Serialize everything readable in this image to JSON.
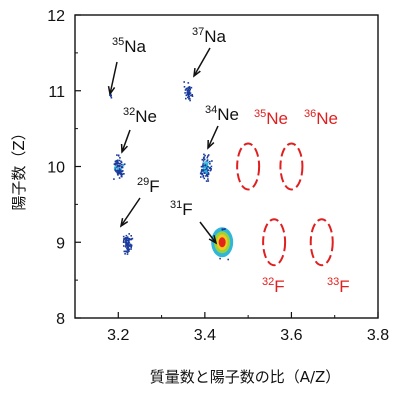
{
  "chart_data": {
    "type": "scatter",
    "title": "",
    "xlabel": "質量数と陽子数の比（A/Z）",
    "ylabel": "陽子数（Z）",
    "xlim": [
      3.1,
      3.8
    ],
    "ylim": [
      8,
      12
    ],
    "xticks": [
      "3.2",
      "3.4",
      "3.6",
      "3.8"
    ],
    "yticks": [
      "8",
      "9",
      "10",
      "11",
      "12"
    ],
    "grid": false,
    "observed": [
      {
        "isotope": "35Na",
        "sup": "35",
        "el": "Na",
        "x": 3.18,
        "y": 10.95
      },
      {
        "isotope": "37Na",
        "sup": "37",
        "el": "Na",
        "x": 3.36,
        "y": 11.0
      },
      {
        "isotope": "32Ne",
        "sup": "32",
        "el": "Ne",
        "x": 3.2,
        "y": 10.0
      },
      {
        "isotope": "34Ne",
        "sup": "34",
        "el": "Ne",
        "x": 3.4,
        "y": 10.0
      },
      {
        "isotope": "29F",
        "sup": "29",
        "el": "F",
        "x": 3.22,
        "y": 9.0
      },
      {
        "isotope": "31F",
        "sup": "31",
        "el": "F",
        "x": 3.44,
        "y": 9.0
      }
    ],
    "unobserved": [
      {
        "isotope": "35Ne",
        "sup": "35",
        "el": "Ne",
        "x": 3.5,
        "y": 10.0
      },
      {
        "isotope": "36Ne",
        "sup": "36",
        "el": "Ne",
        "x": 3.6,
        "y": 10.0
      },
      {
        "isotope": "32F",
        "sup": "32",
        "el": "F",
        "x": 3.56,
        "y": 9.0
      },
      {
        "isotope": "33F",
        "sup": "33",
        "el": "F",
        "x": 3.67,
        "y": 9.0
      }
    ],
    "colors": {
      "observed": "#1a3a9c",
      "unobserved": "#e02020",
      "axis": "#111111"
    }
  }
}
